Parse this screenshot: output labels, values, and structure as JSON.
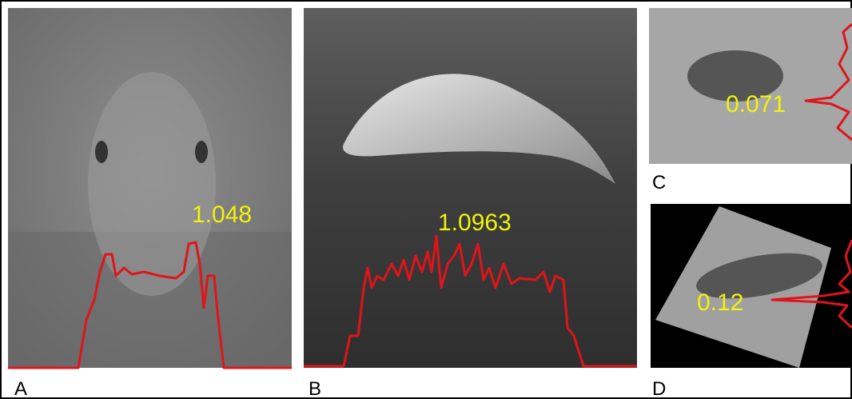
{
  "panels": [
    {
      "label": "A",
      "value": "1.048"
    },
    {
      "label": "B",
      "value": "1.0963"
    },
    {
      "label": "C",
      "value": "0.071"
    },
    {
      "label": "D",
      "value": "0.12"
    }
  ]
}
